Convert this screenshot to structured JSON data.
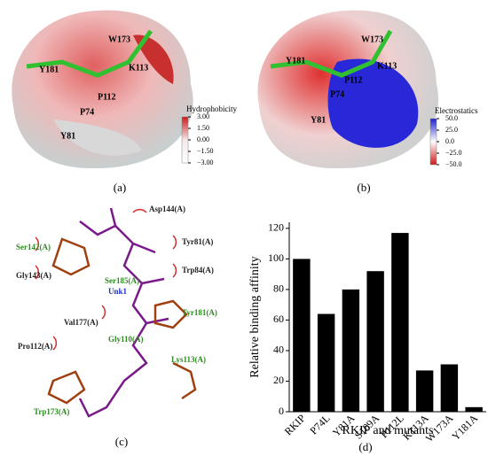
{
  "panels": {
    "a": {
      "caption": "(a)",
      "labels": [
        "W173",
        "K113",
        "Y181",
        "P112",
        "P74",
        "Y81"
      ],
      "colorbar": {
        "title": "Hydrophobicity",
        "ticks": [
          {
            "value": 3,
            "label": "3.00"
          },
          {
            "value": 1.5,
            "label": "1.50"
          },
          {
            "value": 0,
            "label": "0.00"
          },
          {
            "value": -1.5,
            "label": "−1.50"
          },
          {
            "value": -3,
            "label": "−3.00"
          }
        ]
      }
    },
    "b": {
      "caption": "(b)",
      "labels": [
        "W173",
        "Y181",
        "K113",
        "P112",
        "P74",
        "Y81"
      ],
      "colorbar": {
        "title": "Electrostatics",
        "ticks": [
          {
            "value": 50,
            "label": "50.0"
          },
          {
            "value": 25,
            "label": "25.0"
          },
          {
            "value": 0,
            "label": "0.0"
          },
          {
            "value": -25,
            "label": "−25.0"
          },
          {
            "value": -50,
            "label": "−50.0"
          }
        ]
      }
    },
    "c": {
      "caption": "(c)",
      "labels": [
        "Asp144(A)",
        "Ser142(A)",
        "Tyr81(A)",
        "Trp84(A)",
        "Gly143(A)",
        "Ser185(A)",
        "Unk1",
        "Val177(A)",
        "Tyr181(A)",
        "Pro112(A)",
        "Gly110(A)",
        "Lys113(A)",
        "Trp173(A)"
      ]
    }
  },
  "chart_data": {
    "type": "bar",
    "caption": "(d)",
    "x_label": "RKIP and mutants",
    "y_label": "Relative binding affinity",
    "categories": [
      "RKIP",
      "P74L",
      "Y81A",
      "S109A",
      "P112L",
      "K113A",
      "W173A",
      "Y181A"
    ],
    "values": [
      100,
      64,
      80,
      92,
      117,
      27,
      31,
      3
    ],
    "color": "#000000",
    "ylim": [
      0,
      124
    ],
    "yticks": [
      0,
      20,
      40,
      60,
      80,
      100,
      120
    ]
  }
}
